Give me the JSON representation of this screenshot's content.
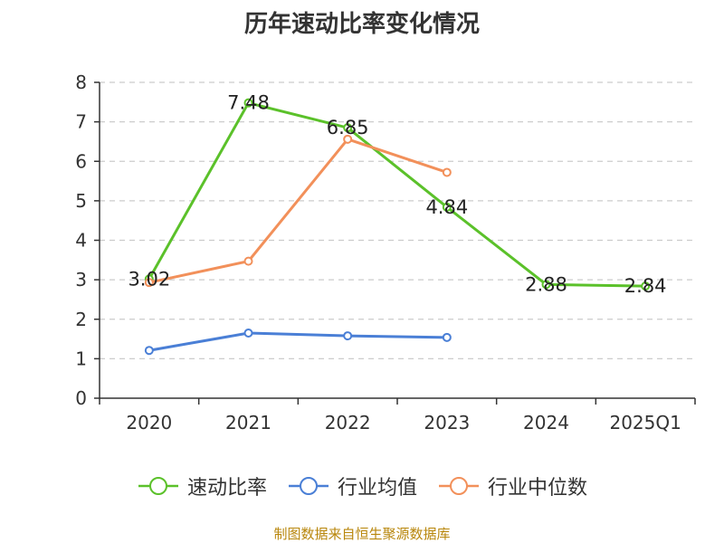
{
  "chart_data": {
    "type": "line",
    "title": "历年速动比率变化情况",
    "categories": [
      "2020",
      "2021",
      "2022",
      "2023",
      "2024",
      "2025Q1"
    ],
    "ylim": [
      0,
      8
    ],
    "yticks": [
      "0",
      "1",
      "2",
      "3",
      "4",
      "5",
      "6",
      "7",
      "8"
    ],
    "grid": true,
    "legend_position": "bottom",
    "series": [
      {
        "name": "速动比率",
        "color": "#5bc12a",
        "values": [
          3.02,
          7.48,
          6.85,
          4.84,
          2.88,
          2.84
        ],
        "labels": [
          "3.02",
          "7.48",
          "6.85",
          "4.84",
          "2.88",
          "2.84"
        ]
      },
      {
        "name": "行业均值",
        "color": "#4a7fd6",
        "values": [
          1.21,
          1.65,
          1.58,
          1.54,
          null,
          null
        ]
      },
      {
        "name": "行业中位数",
        "color": "#f2905a",
        "values": [
          2.93,
          3.47,
          6.56,
          5.72,
          null,
          null
        ]
      }
    ]
  },
  "source": "制图数据来自恒生聚源数据库"
}
